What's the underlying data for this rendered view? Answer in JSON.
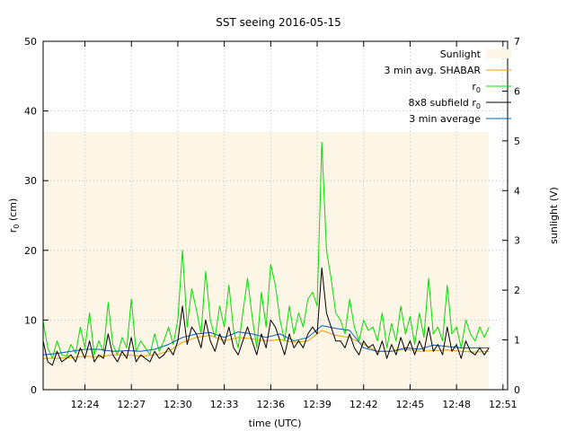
{
  "chart_data": {
    "type": "line",
    "title": "SST seeing 2016-05-15",
    "xlabel": "time (UTC)",
    "ylabel_main": "r",
    "ylabel_sub": "0",
    "ylabel_unit": " (cm)",
    "y2label": "sunlight (V)",
    "xlim": [
      12.355,
      12.855
    ],
    "ylim": [
      0,
      50
    ],
    "y2lim": [
      0,
      7
    ],
    "x_ticks": [
      {
        "value": 12.4,
        "label": "12:24"
      },
      {
        "value": 12.45,
        "label": "12:27"
      },
      {
        "value": 12.5,
        "label": "12:30"
      },
      {
        "value": 12.55,
        "label": "12:33"
      },
      {
        "value": 12.6,
        "label": "12:36"
      },
      {
        "value": 12.65,
        "label": "12:39"
      },
      {
        "value": 12.7,
        "label": "12:42"
      },
      {
        "value": 12.75,
        "label": "12:45"
      },
      {
        "value": 12.8,
        "label": "12:48"
      },
      {
        "value": 12.85,
        "label": "12:51"
      }
    ],
    "y_ticks": [
      0,
      10,
      20,
      30,
      40,
      50
    ],
    "y2_ticks": [
      0,
      1,
      2,
      3,
      4,
      5,
      6,
      7
    ],
    "grid": true,
    "legend_position": "top-right",
    "legend": [
      {
        "key": "sunlight",
        "text": "Sunlight",
        "sub": ""
      },
      {
        "key": "shabar",
        "text": "3 min avg. SHABAR",
        "sub": ""
      },
      {
        "key": "r0",
        "text": "r",
        "sub": "0"
      },
      {
        "key": "sub8",
        "text": "8x8 subfield r",
        "sub": "0"
      },
      {
        "key": "avg",
        "text": "3 min average",
        "sub": ""
      }
    ],
    "colors": {
      "sunlight": "#fdf5e6",
      "shabar": "#e6a000",
      "r0": "#00e000",
      "sub8": "#000000",
      "avg": "#0060c0",
      "grid": "#b0b0b0"
    },
    "series": [
      {
        "key": "sunlight",
        "kind": "area",
        "axis": "y2",
        "x": [
          12.355,
          12.835
        ],
        "y": [
          5.18,
          5.18
        ]
      },
      {
        "key": "r0",
        "axis": "y",
        "x": [
          12.355,
          12.36,
          12.365,
          12.37,
          12.375,
          12.38,
          12.385,
          12.39,
          12.395,
          12.4,
          12.405,
          12.41,
          12.415,
          12.42,
          12.425,
          12.43,
          12.435,
          12.44,
          12.445,
          12.45,
          12.455,
          12.46,
          12.465,
          12.47,
          12.475,
          12.48,
          12.485,
          12.49,
          12.495,
          12.5,
          12.505,
          12.51,
          12.515,
          12.52,
          12.525,
          12.53,
          12.535,
          12.54,
          12.545,
          12.55,
          12.555,
          12.56,
          12.565,
          12.57,
          12.575,
          12.58,
          12.585,
          12.59,
          12.595,
          12.6,
          12.605,
          12.61,
          12.615,
          12.62,
          12.625,
          12.63,
          12.635,
          12.64,
          12.645,
          12.65,
          12.655,
          12.66,
          12.665,
          12.67,
          12.675,
          12.68,
          12.685,
          12.69,
          12.695,
          12.7,
          12.705,
          12.71,
          12.715,
          12.72,
          12.725,
          12.73,
          12.735,
          12.74,
          12.745,
          12.75,
          12.755,
          12.76,
          12.765,
          12.77,
          12.775,
          12.78,
          12.785,
          12.79,
          12.795,
          12.8,
          12.805,
          12.81,
          12.815,
          12.82,
          12.825,
          12.83,
          12.835
        ],
        "y": [
          9.8,
          6.0,
          4.5,
          7.0,
          5.0,
          4.8,
          6.5,
          5.2,
          9.0,
          6.0,
          11.0,
          5.0,
          7.0,
          5.5,
          12.5,
          6.5,
          5.0,
          7.5,
          6.0,
          13.0,
          5.5,
          7.0,
          6.0,
          5.0,
          8.0,
          5.5,
          7.0,
          9.0,
          6.5,
          10.0,
          20.0,
          9.0,
          14.5,
          11.5,
          8.0,
          17.0,
          10.0,
          7.5,
          12.0,
          9.0,
          15.0,
          8.5,
          6.0,
          11.0,
          16.0,
          10.5,
          6.0,
          14.0,
          9.0,
          18.0,
          15.0,
          10.0,
          7.0,
          12.0,
          8.0,
          11.0,
          9.0,
          13.0,
          14.0,
          12.0,
          35.5,
          20.0,
          16.0,
          11.0,
          10.0,
          8.0,
          13.0,
          9.0,
          7.0,
          10.0,
          8.5,
          9.0,
          7.0,
          11.0,
          6.0,
          9.5,
          7.0,
          12.0,
          8.0,
          10.5,
          6.5,
          11.0,
          7.5,
          16.0,
          8.0,
          9.0,
          7.0,
          15.0,
          8.0,
          9.0,
          6.0,
          10.0,
          8.0,
          7.0,
          9.0,
          7.5,
          9.0
        ]
      },
      {
        "key": "sub8",
        "axis": "y",
        "x": [
          12.355,
          12.36,
          12.365,
          12.37,
          12.375,
          12.38,
          12.385,
          12.39,
          12.395,
          12.4,
          12.405,
          12.41,
          12.415,
          12.42,
          12.425,
          12.43,
          12.435,
          12.44,
          12.445,
          12.45,
          12.455,
          12.46,
          12.465,
          12.47,
          12.475,
          12.48,
          12.485,
          12.49,
          12.495,
          12.5,
          12.505,
          12.51,
          12.515,
          12.52,
          12.525,
          12.53,
          12.535,
          12.54,
          12.545,
          12.55,
          12.555,
          12.56,
          12.565,
          12.57,
          12.575,
          12.58,
          12.585,
          12.59,
          12.595,
          12.6,
          12.605,
          12.61,
          12.615,
          12.62,
          12.625,
          12.63,
          12.635,
          12.64,
          12.645,
          12.65,
          12.655,
          12.66,
          12.665,
          12.67,
          12.675,
          12.68,
          12.685,
          12.69,
          12.695,
          12.7,
          12.705,
          12.71,
          12.715,
          12.72,
          12.725,
          12.73,
          12.735,
          12.74,
          12.745,
          12.75,
          12.755,
          12.76,
          12.765,
          12.77,
          12.775,
          12.78,
          12.785,
          12.79,
          12.795,
          12.8,
          12.805,
          12.81,
          12.815,
          12.82,
          12.825,
          12.83,
          12.835
        ],
        "y": [
          7.0,
          4.0,
          3.5,
          5.5,
          4.0,
          4.5,
          5.0,
          4.0,
          6.0,
          4.5,
          7.0,
          4.0,
          5.0,
          4.5,
          8.0,
          5.0,
          4.0,
          5.5,
          4.5,
          7.5,
          4.0,
          5.0,
          4.5,
          4.0,
          5.5,
          4.5,
          5.0,
          6.0,
          5.0,
          7.0,
          12.0,
          6.5,
          9.0,
          8.0,
          6.0,
          10.0,
          7.0,
          5.5,
          8.0,
          6.5,
          9.0,
          6.0,
          5.0,
          7.0,
          9.0,
          7.0,
          5.0,
          8.0,
          6.0,
          10.0,
          9.0,
          7.0,
          5.0,
          8.0,
          6.0,
          7.0,
          6.0,
          8.0,
          9.0,
          8.0,
          17.5,
          11.0,
          9.0,
          7.0,
          7.0,
          6.0,
          8.0,
          6.0,
          5.0,
          7.0,
          6.0,
          6.5,
          5.0,
          7.0,
          4.5,
          6.5,
          5.0,
          7.5,
          5.5,
          7.0,
          5.0,
          7.0,
          5.5,
          9.0,
          5.5,
          6.5,
          5.0,
          9.0,
          5.5,
          6.5,
          4.5,
          7.0,
          5.5,
          5.0,
          6.0,
          5.0,
          6.0
        ]
      },
      {
        "key": "shabar",
        "axis": "y",
        "x": [
          12.355,
          12.37,
          12.385,
          12.4,
          12.415,
          12.43,
          12.445,
          12.46,
          12.475,
          12.49,
          12.505,
          12.52,
          12.535,
          12.55,
          12.565,
          12.58,
          12.595,
          12.61,
          12.625,
          12.64,
          12.655,
          12.67,
          12.685,
          12.7,
          12.715,
          12.73,
          12.745,
          12.76,
          12.775,
          12.79,
          12.805,
          12.82,
          12.835
        ],
        "y": [
          4.5,
          4.5,
          4.6,
          4.8,
          4.7,
          5.0,
          5.0,
          4.8,
          5.0,
          5.5,
          6.8,
          7.5,
          7.8,
          7.0,
          7.5,
          7.3,
          7.0,
          7.2,
          6.8,
          7.0,
          8.5,
          7.8,
          7.5,
          6.5,
          5.5,
          5.5,
          5.8,
          5.5,
          5.6,
          5.7,
          5.5,
          5.4,
          5.5
        ]
      },
      {
        "key": "avg",
        "axis": "y",
        "x": [
          12.355,
          12.37,
          12.385,
          12.4,
          12.415,
          12.43,
          12.445,
          12.46,
          12.475,
          12.49,
          12.505,
          12.52,
          12.535,
          12.55,
          12.565,
          12.58,
          12.595,
          12.61,
          12.625,
          12.64,
          12.655,
          12.67,
          12.685,
          12.7,
          12.715,
          12.73,
          12.745,
          12.76,
          12.775,
          12.79,
          12.805,
          12.82,
          12.835
        ],
        "y": [
          5.0,
          5.2,
          5.5,
          5.8,
          5.8,
          5.5,
          5.6,
          5.5,
          5.8,
          6.5,
          7.5,
          8.0,
          8.2,
          7.5,
          8.3,
          8.0,
          7.5,
          8.0,
          7.0,
          7.5,
          9.2,
          8.8,
          8.5,
          6.0,
          5.5,
          5.5,
          6.0,
          5.8,
          6.4,
          6.2,
          6.0,
          6.0,
          6.0
        ]
      }
    ]
  }
}
